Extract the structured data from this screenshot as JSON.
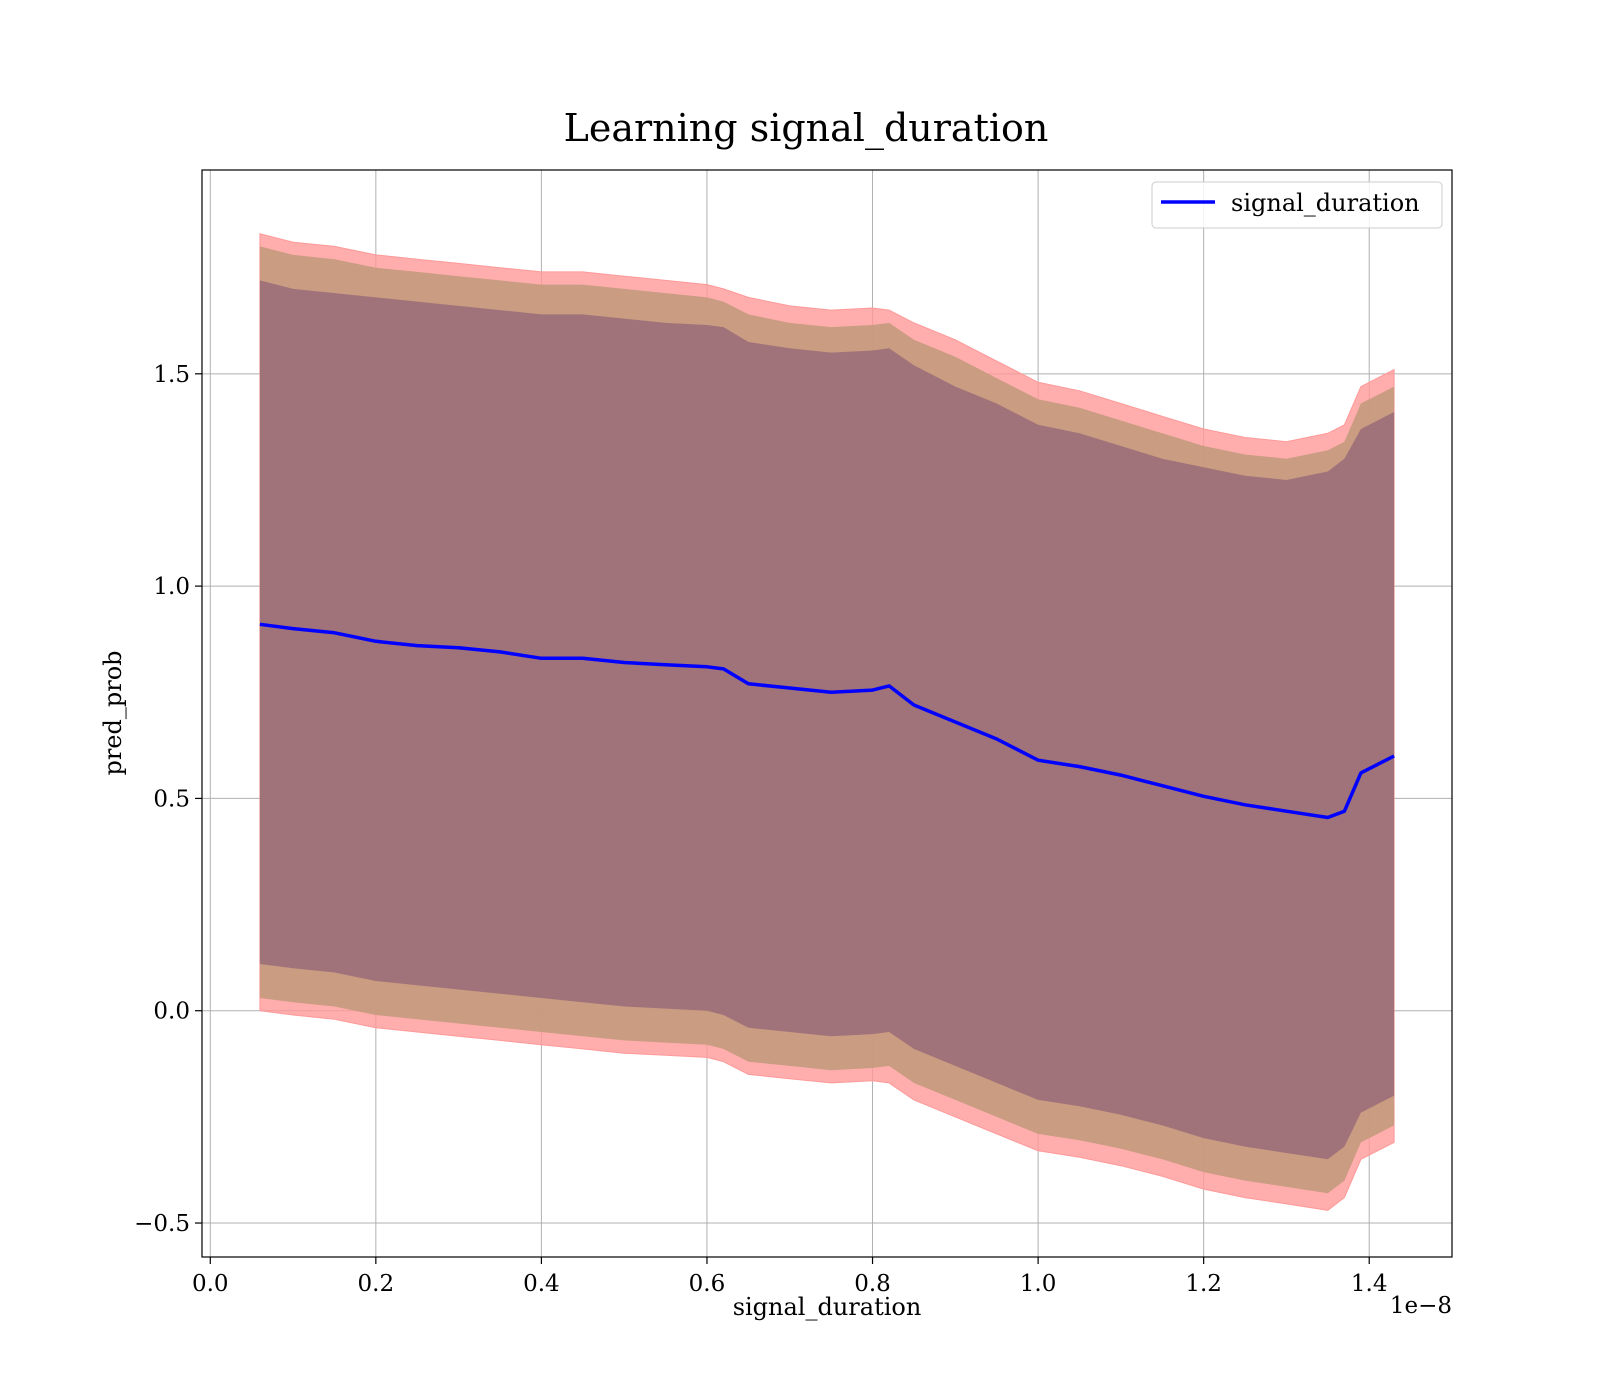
{
  "chart_data": {
    "type": "line",
    "title": "Learning signal_duration",
    "xlabel": "signal_duration",
    "ylabel": "pred_prob",
    "x_offset_label": "1e−8",
    "xlim": [
      -0.01,
      1.5
    ],
    "ylim": [
      -0.58,
      1.98
    ],
    "x_ticks": [
      0.0,
      0.2,
      0.4,
      0.6,
      0.8,
      1.0,
      1.2,
      1.4
    ],
    "x_tick_labels": [
      "0.0",
      "0.2",
      "0.4",
      "0.6",
      "0.8",
      "1.0",
      "1.2",
      "1.4"
    ],
    "y_ticks": [
      -0.5,
      0.0,
      0.5,
      1.0,
      1.5
    ],
    "y_tick_labels": [
      "−0.5",
      "0.0",
      "0.5",
      "1.0",
      "1.5"
    ],
    "grid": true,
    "legend_position": "top-right",
    "colors": {
      "line": "#0000ff",
      "outer_band": "#ff9999",
      "middle_band": "#c49a7c",
      "inner_band": "#a0727a"
    },
    "series": [
      {
        "name": "signal_duration",
        "x": [
          0.06,
          0.1,
          0.15,
          0.2,
          0.25,
          0.3,
          0.35,
          0.4,
          0.45,
          0.5,
          0.55,
          0.6,
          0.62,
          0.65,
          0.7,
          0.75,
          0.8,
          0.82,
          0.85,
          0.9,
          0.95,
          1.0,
          1.05,
          1.1,
          1.15,
          1.2,
          1.25,
          1.3,
          1.35,
          1.37,
          1.39,
          1.43
        ],
        "y": [
          0.91,
          0.9,
          0.89,
          0.87,
          0.86,
          0.855,
          0.845,
          0.83,
          0.83,
          0.82,
          0.815,
          0.81,
          0.805,
          0.77,
          0.76,
          0.75,
          0.755,
          0.765,
          0.72,
          0.68,
          0.64,
          0.59,
          0.575,
          0.555,
          0.53,
          0.505,
          0.485,
          0.47,
          0.455,
          0.47,
          0.56,
          0.6
        ],
        "outer_upper": [
          1.83,
          1.81,
          1.8,
          1.78,
          1.77,
          1.76,
          1.75,
          1.74,
          1.74,
          1.73,
          1.72,
          1.71,
          1.7,
          1.68,
          1.66,
          1.65,
          1.655,
          1.65,
          1.62,
          1.58,
          1.53,
          1.48,
          1.46,
          1.43,
          1.4,
          1.37,
          1.35,
          1.34,
          1.36,
          1.38,
          1.47,
          1.51
        ],
        "outer_lower": [
          0.0,
          -0.01,
          -0.02,
          -0.04,
          -0.05,
          -0.06,
          -0.07,
          -0.08,
          -0.09,
          -0.1,
          -0.105,
          -0.11,
          -0.12,
          -0.15,
          -0.16,
          -0.17,
          -0.165,
          -0.17,
          -0.21,
          -0.25,
          -0.29,
          -0.33,
          -0.345,
          -0.365,
          -0.39,
          -0.42,
          -0.44,
          -0.455,
          -0.47,
          -0.44,
          -0.35,
          -0.31
        ],
        "middle_upper": [
          1.8,
          1.78,
          1.77,
          1.75,
          1.74,
          1.73,
          1.72,
          1.71,
          1.71,
          1.7,
          1.69,
          1.68,
          1.67,
          1.64,
          1.62,
          1.61,
          1.615,
          1.62,
          1.58,
          1.54,
          1.49,
          1.44,
          1.42,
          1.39,
          1.36,
          1.33,
          1.31,
          1.3,
          1.32,
          1.34,
          1.43,
          1.47
        ],
        "middle_lower": [
          0.03,
          0.02,
          0.01,
          -0.01,
          -0.02,
          -0.03,
          -0.04,
          -0.05,
          -0.06,
          -0.07,
          -0.075,
          -0.08,
          -0.09,
          -0.12,
          -0.13,
          -0.14,
          -0.135,
          -0.13,
          -0.17,
          -0.21,
          -0.25,
          -0.29,
          -0.305,
          -0.325,
          -0.35,
          -0.38,
          -0.4,
          -0.415,
          -0.43,
          -0.4,
          -0.31,
          -0.27
        ],
        "inner_upper": [
          1.72,
          1.7,
          1.69,
          1.68,
          1.67,
          1.66,
          1.65,
          1.64,
          1.64,
          1.63,
          1.62,
          1.615,
          1.61,
          1.575,
          1.56,
          1.55,
          1.555,
          1.56,
          1.52,
          1.47,
          1.43,
          1.38,
          1.36,
          1.33,
          1.3,
          1.28,
          1.26,
          1.25,
          1.27,
          1.3,
          1.37,
          1.41
        ],
        "inner_lower": [
          0.11,
          0.1,
          0.09,
          0.07,
          0.06,
          0.05,
          0.04,
          0.03,
          0.02,
          0.01,
          0.005,
          0.0,
          -0.01,
          -0.04,
          -0.05,
          -0.06,
          -0.055,
          -0.05,
          -0.09,
          -0.13,
          -0.17,
          -0.21,
          -0.225,
          -0.245,
          -0.27,
          -0.3,
          -0.32,
          -0.335,
          -0.35,
          -0.32,
          -0.24,
          -0.2
        ]
      }
    ]
  }
}
